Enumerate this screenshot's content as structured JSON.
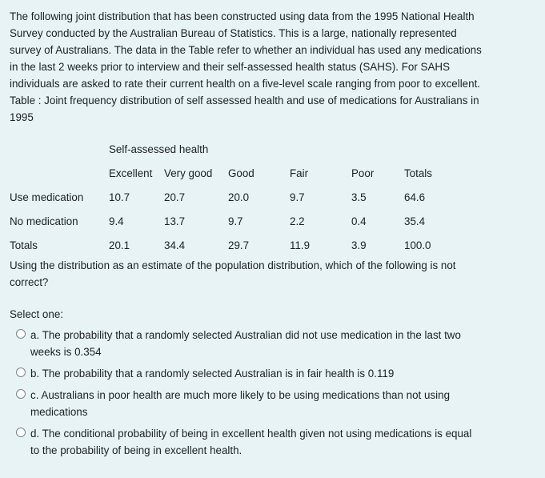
{
  "intro": [
    "The following joint distribution that has been constructed using data from the 1995 National Health",
    "Survey conducted by the Australian Bureau of Statistics. This is a large, nationally represented",
    "survey of Australians. The data in the Table refer to whether an individual has used any medications",
    "in the last 2 weeks prior to interview and their self-assessed health status (SAHS). For SAHS",
    "individuals are asked to rate their current health on a five-level scale ranging from poor to excellent.",
    "Table : Joint frequency distribution of self assessed health and use of medications for Australians in",
    "1995"
  ],
  "table": {
    "group_header": "Self-assessed health",
    "columns": [
      "Excellent",
      "Very good",
      "Good",
      "Fair",
      "Poor",
      "Totals"
    ],
    "rows": [
      {
        "label": "Use medication",
        "values": [
          "10.7",
          "20.7",
          "20.0",
          "9.7",
          "3.5",
          "64.6"
        ]
      },
      {
        "label": "No medication",
        "values": [
          "9.4",
          "13.7",
          "9.7",
          "2.2",
          "0.4",
          "35.4"
        ]
      },
      {
        "label": "Totals",
        "values": [
          "20.1",
          "34.4",
          "29.7",
          "11.9",
          "3.9",
          "100.0"
        ]
      }
    ]
  },
  "question": [
    "Using the distribution as an estimate of the population distribution, which of the following is not",
    "correct?"
  ],
  "select_label": "Select one:",
  "options": [
    {
      "lines": [
        "a. The probability that a randomly selected Australian did not use medication in the last two",
        "weeks is 0.354"
      ]
    },
    {
      "lines": [
        "b. The probability that a randomly selected Australian is in fair health is 0.119"
      ]
    },
    {
      "lines": [
        "c. Australians in poor health are much more likely to be using medications than not using",
        "medications"
      ]
    },
    {
      "lines": [
        "d. The conditional probability of being in excellent health given not using medications is equal",
        "to the probability of being in excellent health."
      ]
    }
  ]
}
